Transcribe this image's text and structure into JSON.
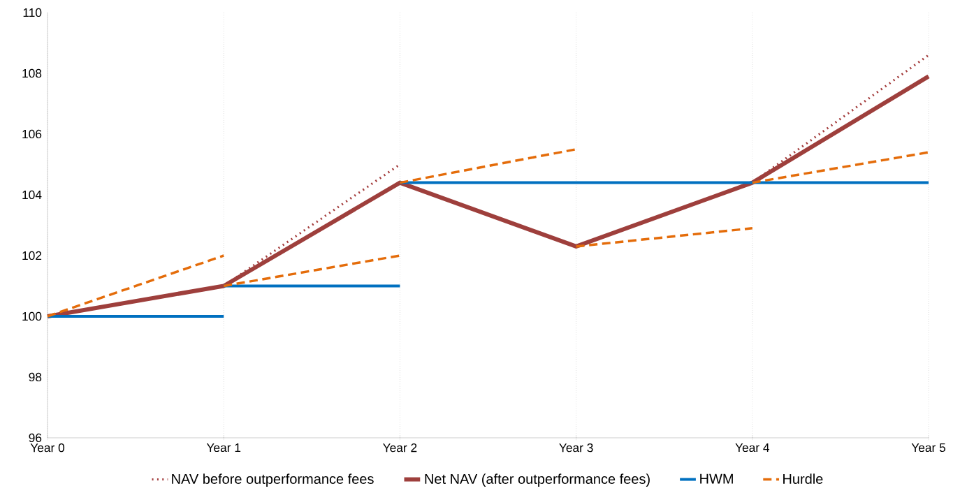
{
  "chart_data": {
    "type": "line",
    "categories": [
      "Year 0",
      "Year 1",
      "Year 2",
      "Year 3",
      "Year 4",
      "Year 5"
    ],
    "ylim": [
      96,
      110
    ],
    "yticks": [
      96,
      98,
      100,
      102,
      104,
      106,
      108,
      110
    ],
    "grid": "x",
    "legend": "bottom",
    "series": [
      {
        "name": "NAV before outperformance fees",
        "color": "#a33b3b",
        "line_style": "dotted",
        "values": [
          null,
          101,
          105,
          null,
          104.4,
          108.6
        ]
      },
      {
        "name": "Net NAV (after outperformance fees)",
        "color": "#9e3f3c",
        "line_style": "solid",
        "values": [
          100,
          101,
          104.4,
          102.3,
          104.4,
          107.9
        ]
      },
      {
        "name": "HWM",
        "color": "#0070c0",
        "line_style": "solid",
        "values": [
          100,
          100,
          null,
          null,
          null,
          null
        ]
      },
      {
        "color": "#0070c0",
        "line_style": "solid",
        "values": [
          null,
          101,
          101,
          null,
          null,
          null
        ]
      },
      {
        "color": "#0070c0",
        "line_style": "solid",
        "values": [
          null,
          null,
          104.4,
          104.4,
          104.4,
          104.4
        ]
      },
      {
        "name": "Hurdle",
        "color": "#e46c0a",
        "line_style": "dashed",
        "values": [
          100,
          102,
          null,
          null,
          null,
          null
        ]
      },
      {
        "color": "#e46c0a",
        "line_style": "dashed",
        "values": [
          null,
          101,
          102,
          null,
          null,
          null
        ]
      },
      {
        "color": "#e46c0a",
        "line_style": "dashed",
        "values": [
          null,
          null,
          104.4,
          105.5,
          null,
          null
        ]
      },
      {
        "color": "#e46c0a",
        "line_style": "dashed",
        "values": [
          null,
          null,
          null,
          102.3,
          102.9,
          null
        ]
      },
      {
        "color": "#e46c0a",
        "line_style": "dashed",
        "values": [
          null,
          null,
          null,
          null,
          104.4,
          105.4
        ]
      }
    ]
  }
}
